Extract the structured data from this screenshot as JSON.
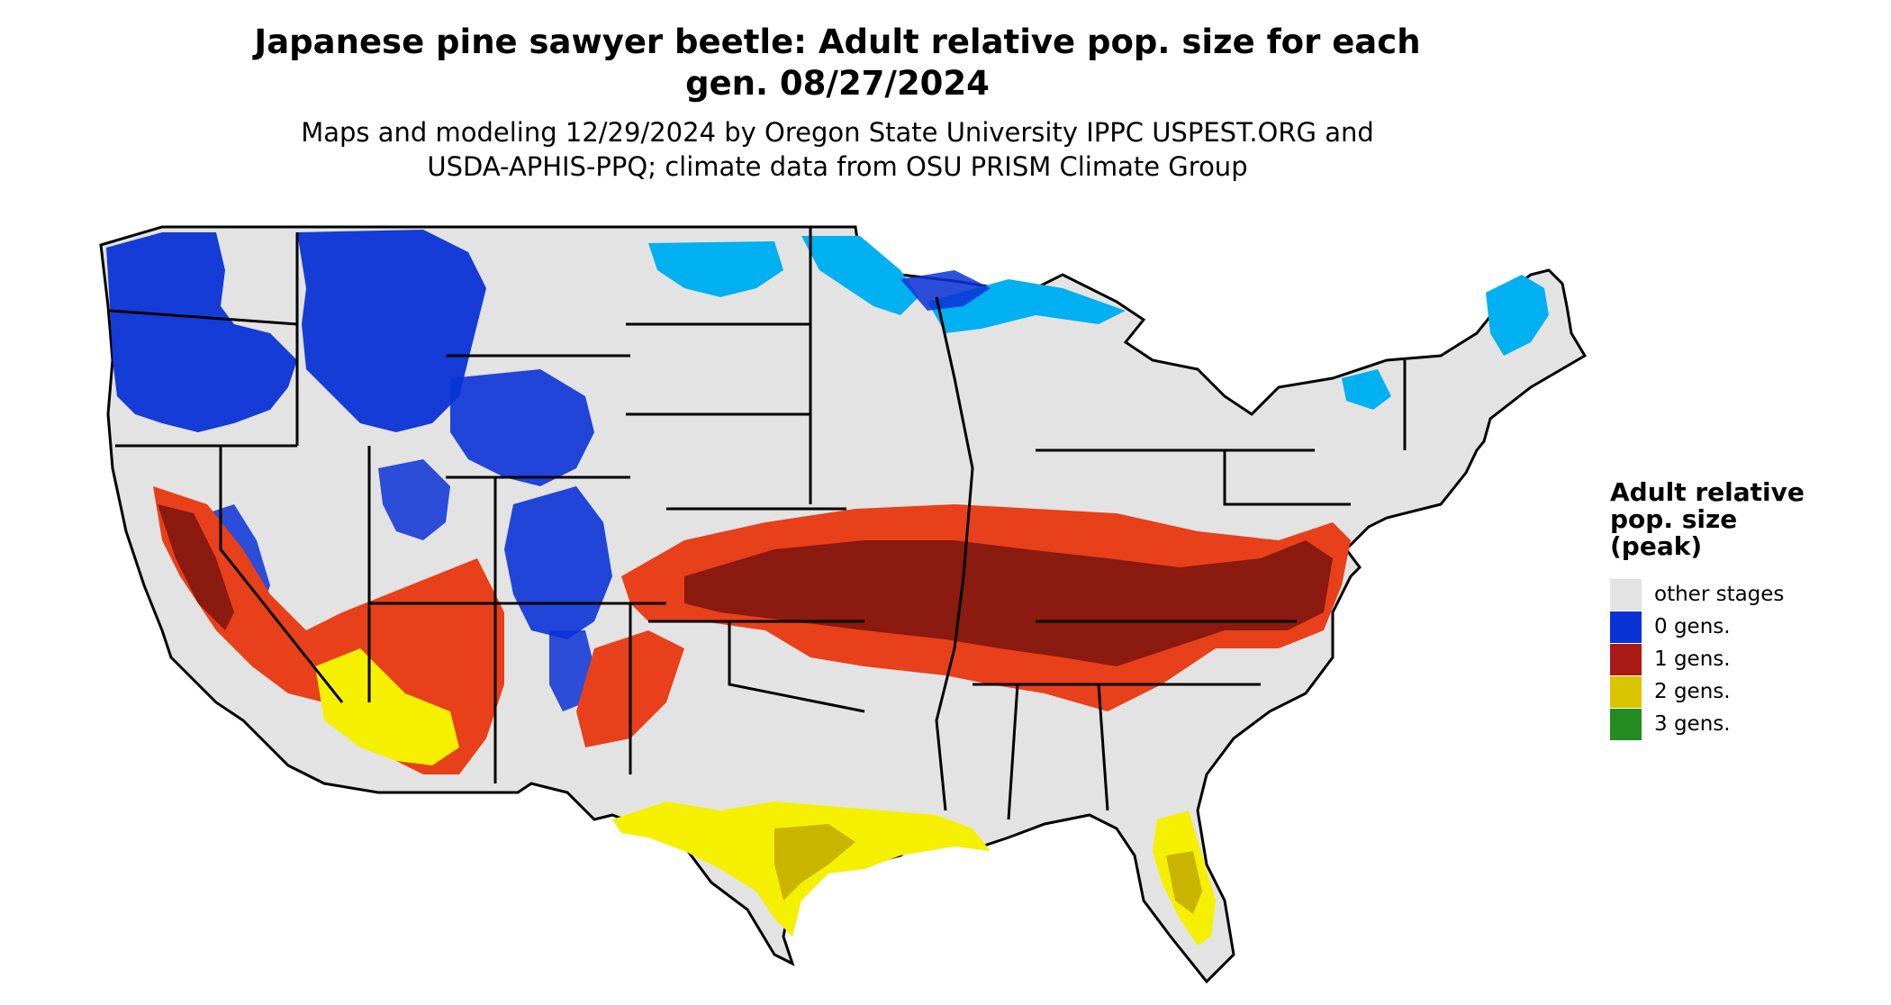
{
  "title": {
    "line1": "Japanese pine sawyer beetle: Adult relative pop. size for each",
    "line2": "gen. 08/27/2024"
  },
  "subtitle": {
    "line1": "Maps and modeling 12/29/2024 by Oregon State University IPPC USPEST.ORG and",
    "line2": "USDA-APHIS-PPQ; climate data from OSU PRISM Climate Group"
  },
  "map": {
    "region": "contiguous United States",
    "state_fill": "#e3e3e3",
    "border_color": "#000000"
  },
  "legend": {
    "title_line1": "Adult relative",
    "title_line2": "pop. size",
    "title_line3": "(peak)",
    "items": [
      {
        "label": "other stages",
        "color": "#e3e3e3"
      },
      {
        "label": "0 gens.",
        "color": "#0a33d6"
      },
      {
        "label": "1 gens.",
        "color": "#aa1a14"
      },
      {
        "label": "2 gens.",
        "color": "#d9c500"
      },
      {
        "label": "3 gens.",
        "color": "#228b22"
      }
    ]
  },
  "color_scale": {
    "blue_dark": "#0a33d6",
    "blue_light": "#00b0f0",
    "red_dark": "#8b1a10",
    "red_orange": "#e8401a",
    "yellow_bright": "#f5f000",
    "yellow_dark": "#c9b400"
  }
}
